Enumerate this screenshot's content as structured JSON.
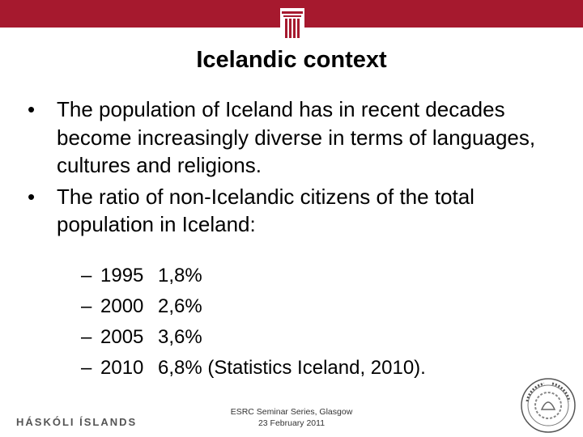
{
  "slide": {
    "title": "Icelandic context",
    "bullets": [
      "The population of Iceland has in recent decades become increasingly diverse in terms of languages, cultures and religions.",
      "The ratio of non-Icelandic citizens of the total population in Iceland:"
    ],
    "bullet_symbol": "•",
    "stats": [
      {
        "dash": "–",
        "year": "1995",
        "value": "1,8%"
      },
      {
        "dash": "–",
        "year": "2000",
        "value": "2,6%"
      },
      {
        "dash": "–",
        "year": "2005",
        "value": "3,6%"
      },
      {
        "dash": "–",
        "year": "2010",
        "value": "6,8% (Statistics Iceland, 2010)."
      }
    ]
  },
  "footer": {
    "university_logo_text": "HÁSKÓLI ÍSLANDS",
    "event_line1": "ESRC Seminar Series, Glasgow",
    "event_line2": "23 February 2011",
    "seal_icon": "university-seal-icon"
  },
  "colors": {
    "brand_red": "#a6192e"
  }
}
